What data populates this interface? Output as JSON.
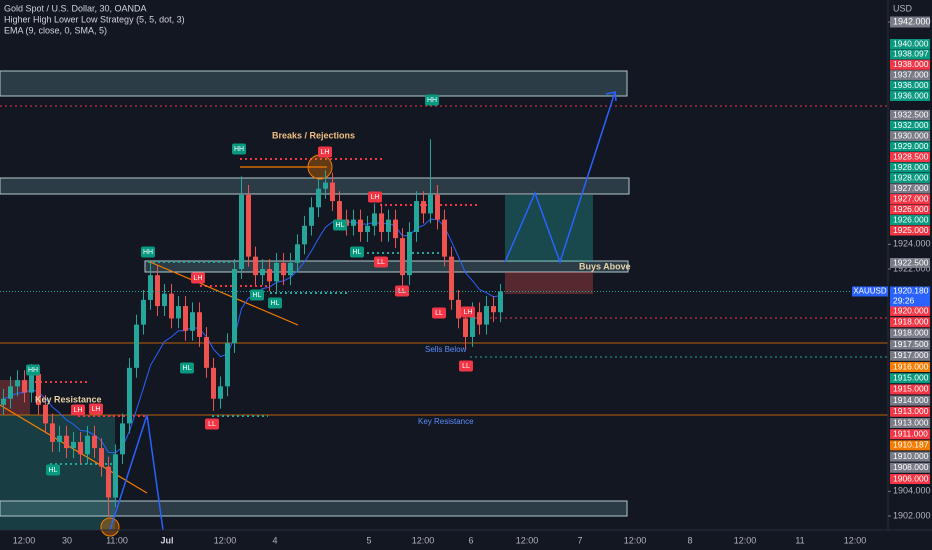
{
  "chart_data": {
    "type": "candlestick",
    "title": "Gold Spot / U.S. Dollar, 30, OANDA",
    "indicators": [
      "Higher High Lower Low Strategy (5, 5, dot, 3)",
      "EMA (9, close, 0, SMA, 5)"
    ],
    "currency": "USD",
    "symbol": "XAUUSD",
    "last_price": {
      "value": 1920.18,
      "label": "1920.180"
    },
    "countdown": "29:26",
    "up_color": "#26a69a",
    "down_color": "#ef5350",
    "ema_color": "#2962ff",
    "ylim": [
      1900.87,
      1943.78
    ],
    "yticks": [
      {
        "value": 1942,
        "label": "1942.000"
      },
      {
        "value": 1924,
        "label": "1924.000"
      },
      {
        "value": 1922,
        "label": "1922.000"
      },
      {
        "value": 1904,
        "label": "1904.000"
      },
      {
        "value": 1902,
        "label": "1902.000"
      }
    ],
    "x_labels": [
      "12:00",
      "30",
      "11:00",
      "Jul",
      "12:00",
      "4",
      "5",
      "12:00",
      "6",
      "12:00",
      "7",
      "12:00",
      "8",
      "12:00",
      "11",
      "12:00"
    ],
    "open": [
      1911,
      1911.5,
      1912.5,
      1913,
      1912,
      1913.5,
      1911,
      1909.5,
      1908,
      1908.5,
      1907.5,
      1908,
      1907,
      1908.5,
      1907.5,
      1906,
      1903.5,
      1907,
      1909.5,
      1914,
      1917.5,
      1919.5,
      1921.5,
      1919,
      1920,
      1918,
      1919,
      1917,
      1918.5,
      1916.5,
      1914,
      1911.5,
      1912.5,
      1916,
      1922,
      1928,
      1923,
      1921.5,
      1922,
      1921,
      1922.5,
      1921.5,
      1922.5,
      1924,
      1925.5,
      1927,
      1928.5,
      1929,
      1927.5,
      1926,
      1925.5,
      1926,
      1925,
      1925.5,
      1926.5,
      1925,
      1926,
      1924.5,
      1921.5,
      1925,
      1927.5,
      1926.5,
      1928,
      1926,
      1923,
      1919.5,
      1918,
      1916.5,
      1918.5,
      1917.5,
      1919,
      1918.5
    ],
    "high": [
      1912.3,
      1913.3,
      1913.8,
      1913.8,
      1914.3,
      1914.3,
      1911.8,
      1910.3,
      1909.3,
      1909.3,
      1908.8,
      1908.8,
      1909.3,
      1909.3,
      1908.3,
      1906.8,
      1907.8,
      1910.3,
      1914.8,
      1918.3,
      1920.3,
      1922.5,
      1922.3,
      1920.8,
      1920.8,
      1919.8,
      1919.8,
      1919.3,
      1919.3,
      1917.3,
      1914.8,
      1913.3,
      1916.8,
      1922.8,
      1929.5,
      1928.8,
      1923.8,
      1922.8,
      1922.8,
      1923.3,
      1923.3,
      1923.3,
      1924.8,
      1926.3,
      1927.8,
      1929.3,
      1930,
      1929.8,
      1928.3,
      1926.8,
      1926.8,
      1926.8,
      1926.3,
      1927.3,
      1927.3,
      1926.8,
      1926.8,
      1925.3,
      1925.8,
      1928.3,
      1928.3,
      1932.5,
      1928.8,
      1926.8,
      1923.8,
      1920.3,
      1918.8,
      1919.3,
      1919.3,
      1919.8,
      1919.8,
      1920.8
    ],
    "low": [
      1910.2,
      1910.7,
      1911.7,
      1911.2,
      1911.2,
      1910.2,
      1908.7,
      1907.2,
      1907.2,
      1906.7,
      1906.7,
      1906.2,
      1906.2,
      1906.7,
      1905.2,
      1902,
      1902.7,
      1906.2,
      1908.7,
      1913.2,
      1916.7,
      1918.7,
      1918.2,
      1918.2,
      1917.2,
      1917.2,
      1916.2,
      1916.2,
      1915.7,
      1913.2,
      1910.5,
      1910.7,
      1911.7,
      1915.2,
      1921.2,
      1922.2,
      1920.7,
      1920.7,
      1920.2,
      1920.2,
      1920.7,
      1920.7,
      1921.7,
      1923.2,
      1924.7,
      1926.2,
      1927.7,
      1926.7,
      1925.2,
      1924.7,
      1924.7,
      1924.2,
      1924.2,
      1924.7,
      1924.2,
      1924.2,
      1923.7,
      1920,
      1920.7,
      1924.2,
      1925.7,
      1925.7,
      1925.2,
      1922.2,
      1918.7,
      1917.2,
      1915.5,
      1915.7,
      1916.7,
      1916.7,
      1917.7,
      1917.7
    ],
    "close": [
      1911.5,
      1912.5,
      1913,
      1912,
      1913.5,
      1911,
      1909.5,
      1908,
      1908.5,
      1907.5,
      1908,
      1907,
      1908.5,
      1907.5,
      1906,
      1903.5,
      1907,
      1909.5,
      1914,
      1917.5,
      1919.5,
      1921.5,
      1919,
      1920,
      1918,
      1919,
      1917,
      1918.5,
      1916.5,
      1914,
      1911.5,
      1912.5,
      1916,
      1922,
      1928,
      1923,
      1921.5,
      1922,
      1921,
      1922.5,
      1921.5,
      1922.5,
      1924,
      1925.5,
      1927,
      1928.5,
      1929,
      1927.5,
      1926,
      1925.5,
      1926,
      1925,
      1925.5,
      1926.5,
      1925,
      1926,
      1924.5,
      1921.5,
      1925,
      1927.5,
      1926.5,
      1928,
      1926,
      1923,
      1919.5,
      1918,
      1916.5,
      1918.5,
      1917.5,
      1919,
      1918.5,
      1920.18
    ],
    "pivot_labels": [
      "HH",
      "LH",
      "LH",
      "HL",
      "HH",
      "LH",
      "HL",
      "LL",
      "HH",
      "LH",
      "HL",
      "HL",
      "LH",
      "HL",
      "HL",
      "LL",
      "LL",
      "HH",
      "LL",
      "LH",
      "LL"
    ],
    "annotations": [
      "Breaks / Rejections",
      "Key Resistance",
      "Buys Above",
      "Sells Below",
      "Key Resistance"
    ],
    "price_labels": [
      [
        {
          "label": "1940.000",
          "color": "#089981"
        },
        {
          "label": "1938.097",
          "color": "#089981"
        },
        {
          "label": "1938.000",
          "color": "#f23645"
        },
        {
          "label": "1937.000",
          "color": "#787b86"
        },
        {
          "label": "1936.000",
          "color": "#089981"
        },
        {
          "label": "1936.000",
          "color": "#089981"
        }
      ],
      [
        {
          "label": "1932.500",
          "color": "#787b86"
        },
        {
          "label": "1932.000",
          "color": "#089981"
        },
        {
          "label": "1930.000",
          "color": "#787b86"
        },
        {
          "label": "1929.000",
          "color": "#089981"
        },
        {
          "label": "1928.500",
          "color": "#f23645"
        },
        {
          "label": "1928.000",
          "color": "#089981"
        },
        {
          "label": "1928.000",
          "color": "#089981"
        },
        {
          "label": "1927.000",
          "color": "#787b86"
        },
        {
          "label": "1927.000",
          "color": "#f23645"
        },
        {
          "label": "1926.000",
          "color": "#f23645"
        },
        {
          "label": "1926.000",
          "color": "#089981"
        },
        {
          "label": "1925.000",
          "color": "#f23645"
        }
      ],
      [
        {
          "label": "1922.500",
          "color": "#787b86"
        }
      ],
      [
        {
          "label": "1920.000",
          "color": "#f23645"
        },
        {
          "label": "1918.000",
          "color": "#f23645"
        },
        {
          "label": "1918.000",
          "color": "#787b86"
        },
        {
          "label": "1917.500",
          "color": "#787b86"
        },
        {
          "label": "1917.000",
          "color": "#787b86"
        },
        {
          "label": "1916.000",
          "color": "#f57c00"
        },
        {
          "label": "1915.000",
          "color": "#089981"
        },
        {
          "label": "1915.000",
          "color": "#f23645"
        },
        {
          "label": "1914.000",
          "color": "#787b86"
        },
        {
          "label": "1913.000",
          "color": "#f23645"
        },
        {
          "label": "1913.000",
          "color": "#787b86"
        },
        {
          "label": "1911.000",
          "color": "#f23645"
        },
        {
          "label": "1910.187",
          "color": "#f57c00"
        },
        {
          "label": "1910.000",
          "color": "#787b86"
        },
        {
          "label": "1908.000",
          "color": "#787b86"
        },
        {
          "label": "1906.000",
          "color": "#f23645"
        }
      ]
    ]
  }
}
